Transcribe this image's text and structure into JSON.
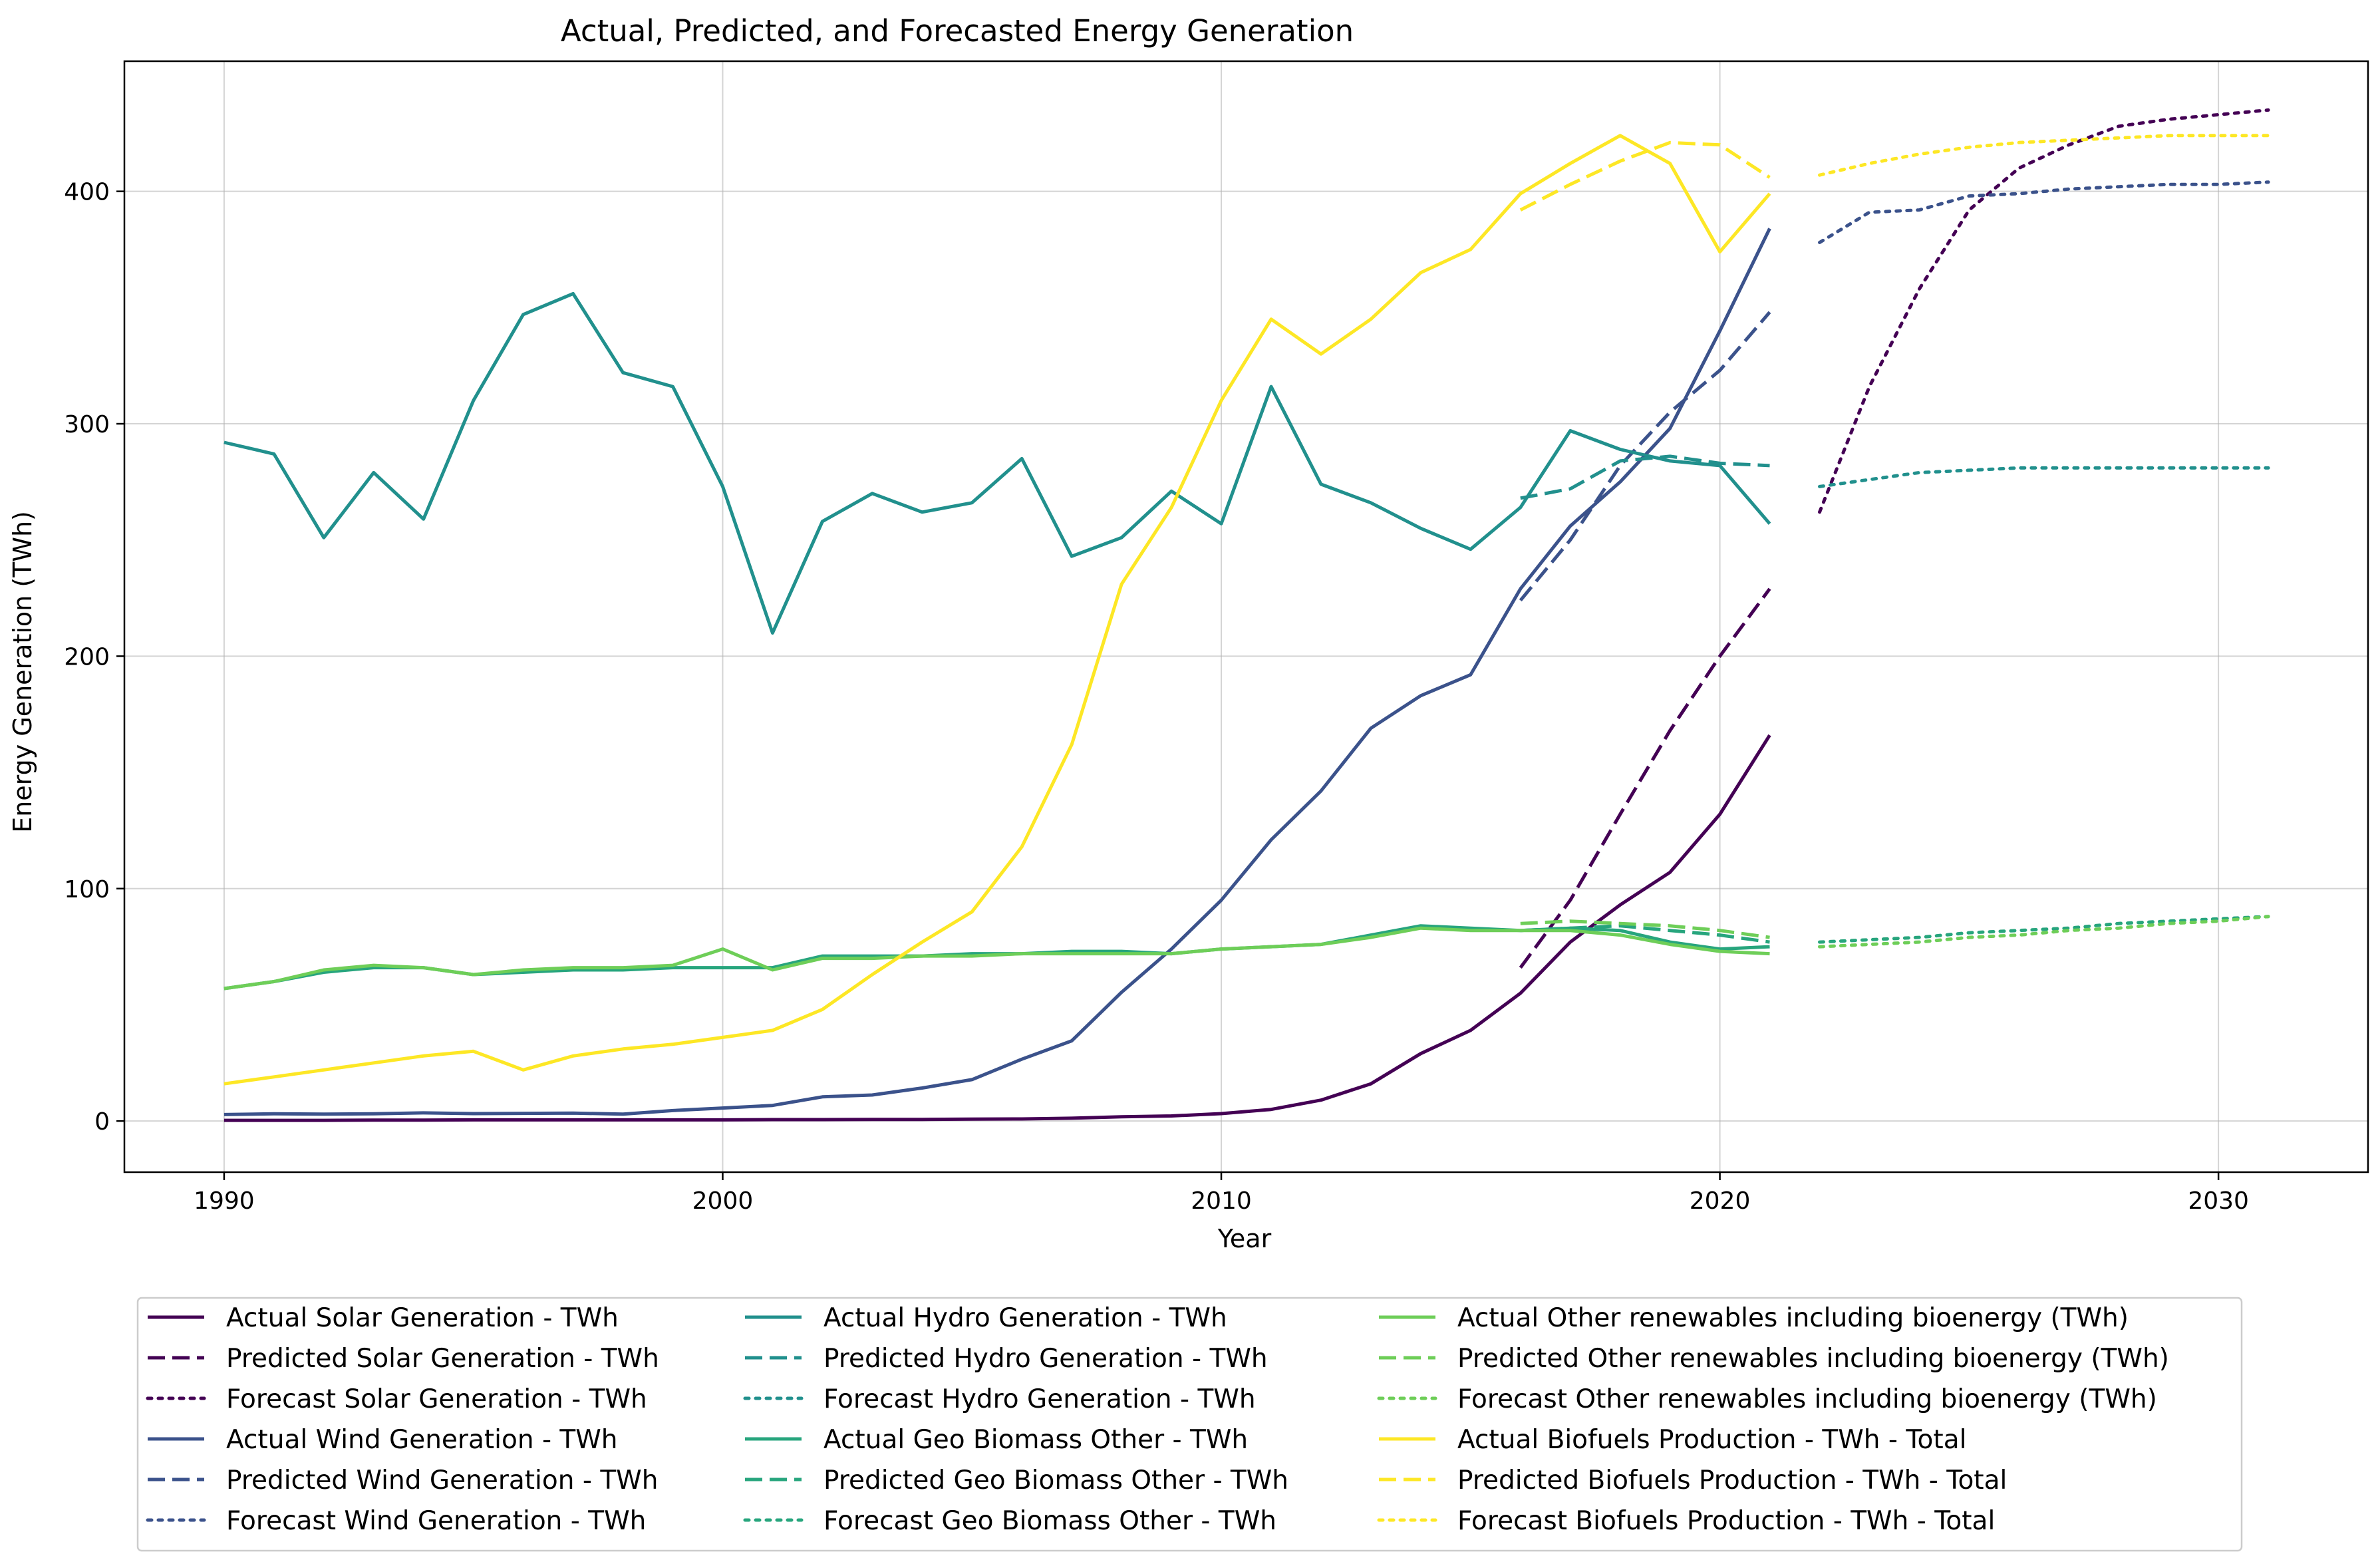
{
  "chart_data": {
    "type": "line",
    "title": "Actual, Predicted, and Forecasted Energy Generation",
    "xlabel": "Year",
    "ylabel": "Energy Generation (TWh)",
    "xlim": [
      1988,
      2033
    ],
    "ylim": [
      -22,
      456
    ],
    "xticks": [
      1990,
      2000,
      2010,
      2020,
      2030
    ],
    "yticks": [
      0,
      100,
      200,
      300,
      400
    ],
    "grid": true,
    "legend_position": "bottom",
    "series": [
      {
        "name": "Actual Solar Generation - TWh",
        "style": "solid",
        "color": "#440154",
        "x": [
          1990,
          1991,
          1992,
          1993,
          1994,
          1995,
          1996,
          1997,
          1998,
          1999,
          2000,
          2001,
          2002,
          2003,
          2004,
          2005,
          2006,
          2007,
          2008,
          2009,
          2010,
          2011,
          2012,
          2013,
          2014,
          2015,
          2016,
          2017,
          2018,
          2019,
          2020,
          2021
        ],
        "y": [
          0.3,
          0.3,
          0.3,
          0.4,
          0.4,
          0.5,
          0.5,
          0.5,
          0.5,
          0.5,
          0.5,
          0.6,
          0.6,
          0.7,
          0.7,
          0.8,
          0.9,
          1.2,
          1.8,
          2.2,
          3.2,
          5,
          9,
          16,
          29,
          39,
          55,
          77,
          93,
          107,
          132,
          166
        ]
      },
      {
        "name": "Predicted Solar Generation - TWh",
        "style": "dashed",
        "color": "#440154",
        "x": [
          2016,
          2017,
          2018,
          2019,
          2020,
          2021
        ],
        "y": [
          66,
          95,
          132,
          168,
          200,
          229
        ]
      },
      {
        "name": "Forecast Solar Generation - TWh",
        "style": "dotted",
        "color": "#440154",
        "x": [
          2022,
          2023,
          2024,
          2025,
          2026,
          2027,
          2028,
          2029,
          2030,
          2031
        ],
        "y": [
          262,
          316,
          358,
          392,
          410,
          420,
          428,
          431,
          433,
          435
        ]
      },
      {
        "name": "Actual Wind Generation - TWh",
        "style": "solid",
        "color": "#3b528b",
        "x": [
          1990,
          1991,
          1992,
          1993,
          1994,
          1995,
          1996,
          1997,
          1998,
          1999,
          2000,
          2001,
          2002,
          2003,
          2004,
          2005,
          2006,
          2007,
          2008,
          2009,
          2010,
          2011,
          2012,
          2013,
          2014,
          2015,
          2016,
          2017,
          2018,
          2019,
          2020,
          2021
        ],
        "y": [
          2.8,
          3.1,
          3.0,
          3.1,
          3.5,
          3.2,
          3.3,
          3.4,
          3.0,
          4.5,
          5.6,
          6.7,
          10.4,
          11.2,
          14.2,
          17.8,
          26.6,
          34.5,
          55.4,
          74,
          95,
          121,
          142,
          169,
          183,
          192,
          229,
          256,
          275,
          298,
          340,
          384
        ]
      },
      {
        "name": "Predicted Wind Generation - TWh",
        "style": "dashed",
        "color": "#3b528b",
        "x": [
          2016,
          2017,
          2018,
          2019,
          2020,
          2021
        ],
        "y": [
          224,
          250,
          282,
          305,
          323,
          348
        ]
      },
      {
        "name": "Forecast Wind Generation - TWh",
        "style": "dotted",
        "color": "#3b528b",
        "x": [
          2022,
          2023,
          2024,
          2025,
          2026,
          2027,
          2028,
          2029,
          2030,
          2031
        ],
        "y": [
          378,
          391,
          392,
          398,
          399,
          401,
          402,
          403,
          403,
          404
        ]
      },
      {
        "name": "Actual Hydro Generation - TWh",
        "style": "solid",
        "color": "#21908d",
        "x": [
          1990,
          1991,
          1992,
          1993,
          1994,
          1995,
          1996,
          1997,
          1998,
          1999,
          2000,
          2001,
          2002,
          2003,
          2004,
          2005,
          2006,
          2007,
          2008,
          2009,
          2010,
          2011,
          2012,
          2013,
          2014,
          2015,
          2016,
          2017,
          2018,
          2019,
          2020,
          2021
        ],
        "y": [
          292,
          287,
          251,
          279,
          259,
          310,
          347,
          356,
          322,
          316,
          273,
          210,
          258,
          270,
          262,
          266,
          285,
          243,
          251,
          271,
          257,
          316,
          274,
          266,
          255,
          246,
          264,
          297,
          289,
          284,
          282,
          257
        ]
      },
      {
        "name": "Predicted Hydro Generation - TWh",
        "style": "dashed",
        "color": "#21908d",
        "x": [
          2016,
          2017,
          2018,
          2019,
          2020,
          2021
        ],
        "y": [
          268,
          272,
          284,
          286,
          283,
          282
        ]
      },
      {
        "name": "Forecast Hydro Generation - TWh",
        "style": "dotted",
        "color": "#21908d",
        "x": [
          2022,
          2023,
          2024,
          2025,
          2026,
          2027,
          2028,
          2029,
          2030,
          2031
        ],
        "y": [
          273,
          276,
          279,
          280,
          281,
          281,
          281,
          281,
          281,
          281
        ]
      },
      {
        "name": "Actual Geo Biomass Other - TWh",
        "style": "solid",
        "color": "#27a57d",
        "x": [
          1990,
          1991,
          1992,
          1993,
          1994,
          1995,
          1996,
          1997,
          1998,
          1999,
          2000,
          2001,
          2002,
          2003,
          2004,
          2005,
          2006,
          2007,
          2008,
          2009,
          2010,
          2011,
          2012,
          2013,
          2014,
          2015,
          2016,
          2017,
          2018,
          2019,
          2020,
          2021
        ],
        "y": [
          57,
          60,
          64,
          66,
          66,
          63,
          64,
          65,
          65,
          66,
          66,
          66,
          71,
          71,
          71,
          72,
          72,
          73,
          73,
          72,
          74,
          75,
          76,
          80,
          84,
          83,
          82,
          83,
          82,
          77,
          74,
          75
        ]
      },
      {
        "name": "Predicted Geo Biomass Other - TWh",
        "style": "dashed",
        "color": "#27a57d",
        "x": [
          2016,
          2017,
          2018,
          2019,
          2020,
          2021
        ],
        "y": [
          82,
          83,
          84,
          82,
          80,
          77
        ]
      },
      {
        "name": "Forecast Geo Biomass Other - TWh",
        "style": "dotted",
        "color": "#27a57d",
        "x": [
          2022,
          2023,
          2024,
          2025,
          2026,
          2027,
          2028,
          2029,
          2030,
          2031
        ],
        "y": [
          77,
          78,
          79,
          81,
          82,
          83,
          85,
          86,
          87,
          88
        ]
      },
      {
        "name": "Actual Other renewables including bioenergy (TWh)",
        "style": "solid",
        "color": "#6ece58",
        "x": [
          1990,
          1991,
          1992,
          1993,
          1994,
          1995,
          1996,
          1997,
          1998,
          1999,
          2000,
          2001,
          2002,
          2003,
          2004,
          2005,
          2006,
          2007,
          2008,
          2009,
          2010,
          2011,
          2012,
          2013,
          2014,
          2015,
          2016,
          2017,
          2018,
          2019,
          2020,
          2021
        ],
        "y": [
          57,
          60,
          65,
          67,
          66,
          63,
          65,
          66,
          66,
          67,
          74,
          65,
          70,
          70,
          71,
          71,
          72,
          72,
          72,
          72,
          74,
          75,
          76,
          79,
          83,
          82,
          82,
          82,
          80,
          76,
          73,
          72
        ]
      },
      {
        "name": "Predicted Other renewables including bioenergy (TWh)",
        "style": "dashed",
        "color": "#6ece58",
        "x": [
          2016,
          2017,
          2018,
          2019,
          2020,
          2021
        ],
        "y": [
          85,
          86,
          85,
          84,
          82,
          79
        ]
      },
      {
        "name": "Forecast Other renewables including bioenergy (TWh)",
        "style": "dotted",
        "color": "#6ece58",
        "x": [
          2022,
          2023,
          2024,
          2025,
          2026,
          2027,
          2028,
          2029,
          2030,
          2031
        ],
        "y": [
          75,
          76,
          77,
          79,
          80,
          82,
          83,
          85,
          86,
          88
        ]
      },
      {
        "name": "Actual Biofuels Production - TWh - Total",
        "style": "solid",
        "color": "#fde725",
        "x": [
          1990,
          1991,
          1992,
          1993,
          1994,
          1995,
          1996,
          1997,
          1998,
          1999,
          2000,
          2001,
          2002,
          2003,
          2004,
          2005,
          2006,
          2007,
          2008,
          2009,
          2010,
          2011,
          2012,
          2013,
          2014,
          2015,
          2016,
          2017,
          2018,
          2019,
          2020,
          2021
        ],
        "y": [
          16,
          19,
          22,
          25,
          28,
          30,
          22,
          28,
          31,
          33,
          36,
          39,
          48,
          63,
          77,
          90,
          118,
          162,
          231,
          264,
          310,
          345,
          330,
          345,
          365,
          375,
          399,
          412,
          424,
          412,
          374,
          399
        ]
      },
      {
        "name": "Predicted Biofuels Production - TWh - Total",
        "style": "dashed",
        "color": "#fde725",
        "x": [
          2016,
          2017,
          2018,
          2019,
          2020,
          2021
        ],
        "y": [
          392,
          403,
          413,
          421,
          420,
          406
        ]
      },
      {
        "name": "Forecast Biofuels Production - TWh - Total",
        "style": "dotted",
        "color": "#fde725",
        "x": [
          2022,
          2023,
          2024,
          2025,
          2026,
          2027,
          2028,
          2029,
          2030,
          2031
        ],
        "y": [
          407,
          412,
          416,
          419,
          421,
          422,
          423,
          424,
          424,
          424
        ]
      }
    ]
  }
}
